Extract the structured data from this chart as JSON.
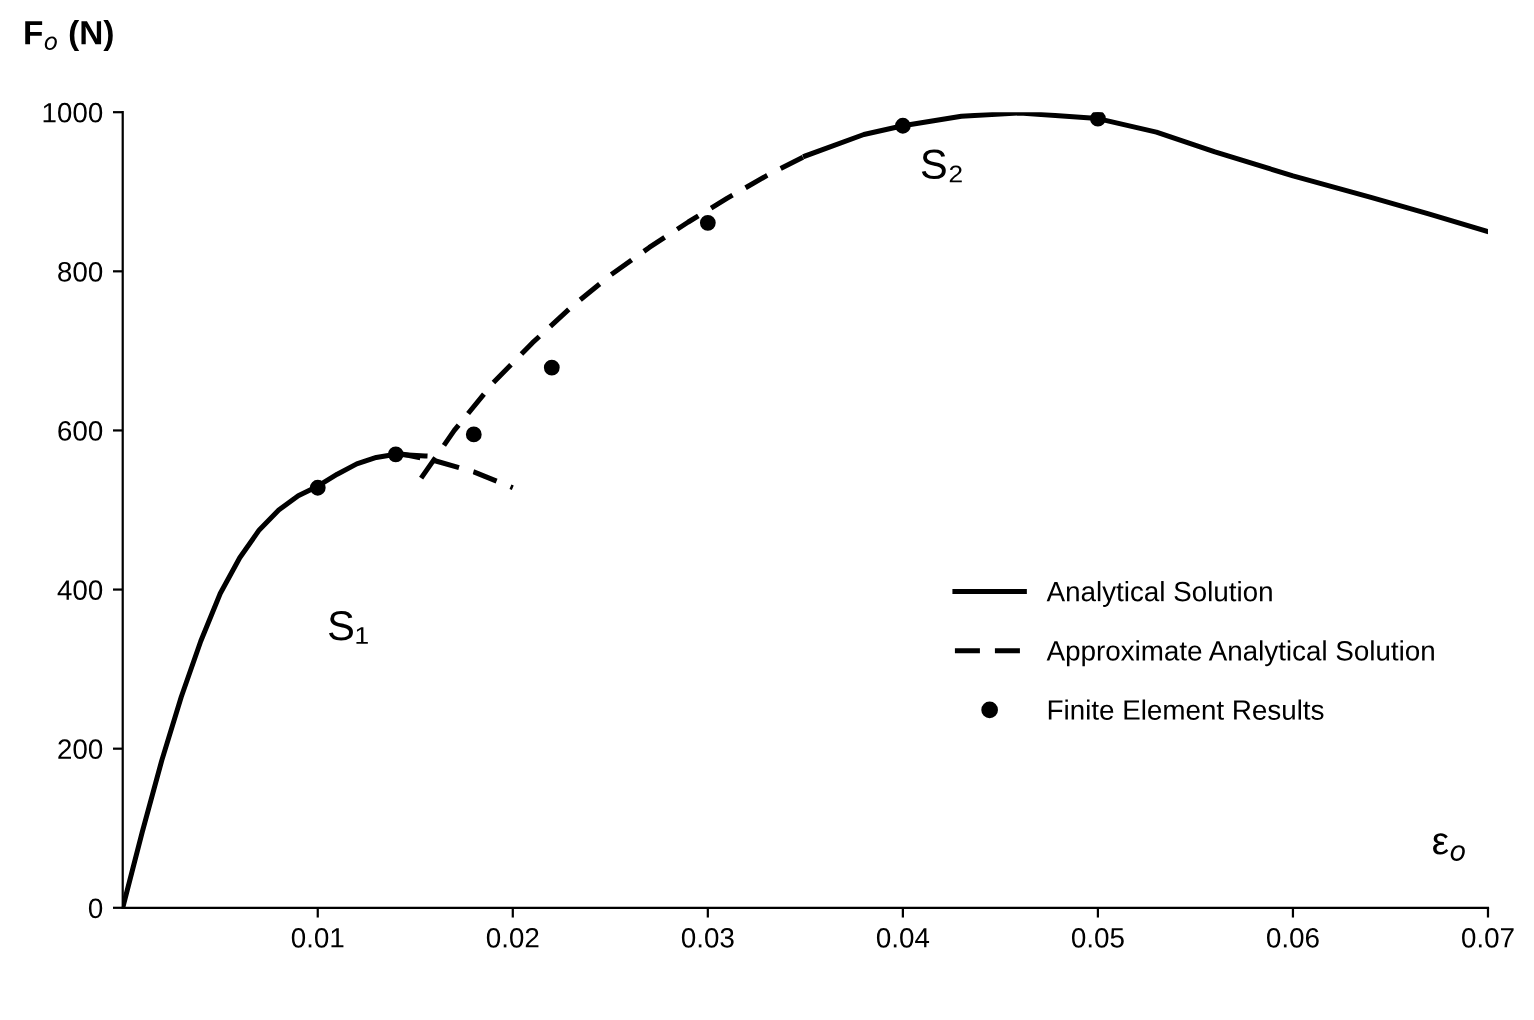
{
  "chart_data": {
    "type": "line",
    "xlabel": "ε$_{o}$",
    "ylabel": "F$_{o}$ (N)",
    "xlim": [
      0,
      0.07
    ],
    "ylim": [
      0,
      1000
    ],
    "xticks": [
      0.01,
      0.02,
      0.03,
      0.04,
      0.05,
      0.06,
      0.07
    ],
    "yticks": [
      0,
      200,
      400,
      600,
      800,
      1000
    ],
    "grid": false,
    "legend": "right",
    "marker": "none",
    "series": [
      {
        "name": "Analytical Solution",
        "color": "#000000",
        "line_style": "solid",
        "x": [
          0,
          0.001,
          0.002,
          0.003,
          0.004,
          0.005,
          0.006,
          0.007,
          0.008,
          0.009,
          0.01,
          0.011,
          0.012,
          0.013,
          0.014,
          0.0155,
          0.025,
          0.035,
          0.038,
          0.04,
          0.043,
          0.046,
          0.05,
          0.053,
          0.056,
          0.06,
          0.064,
          0.067,
          0.07
        ],
        "values": [
          0,
          95,
          185,
          265,
          335,
          395,
          440,
          475,
          500,
          518,
          530,
          545,
          558,
          566,
          570,
          568,
          null,
          945,
          972,
          983,
          995,
          999,
          992,
          975,
          950,
          920,
          893,
          872,
          850
        ]
      },
      {
        "name": "Approximate Analytical Solution",
        "color": "#000000",
        "line_style": "dashed",
        "x": [
          0.014,
          0.016,
          0.018,
          0.02,
          0.0175,
          0.0153,
          0.017,
          0.019,
          0.021,
          0.023,
          0.025,
          0.027,
          0.029,
          0.031,
          0.033,
          0.035
        ],
        "values": [
          572,
          562,
          548,
          528,
          null,
          540,
          600,
          660,
          710,
          755,
          795,
          830,
          862,
          892,
          920,
          945
        ]
      },
      {
        "name": "Finite Element Results",
        "type": "scatter",
        "color": "#000000",
        "marker": "circle",
        "x": [
          0.01,
          0.014,
          0.018,
          0.022,
          0.03,
          0.04,
          0.05
        ],
        "values": [
          528,
          570,
          595,
          679,
          861,
          983,
          992
        ]
      }
    ],
    "annotations": [
      "S₁",
      "S₂"
    ]
  }
}
